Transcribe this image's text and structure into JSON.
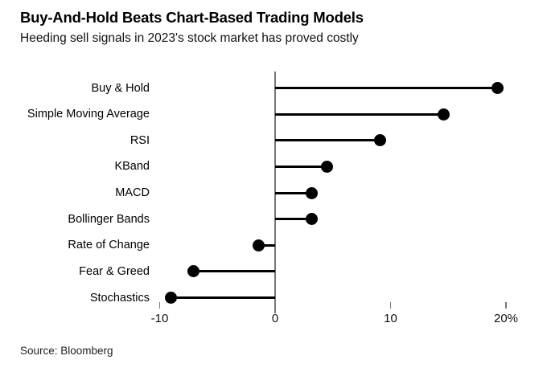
{
  "chart_data": {
    "type": "bar",
    "variant": "lollipop",
    "orientation": "horizontal",
    "title": "Buy-And-Hold Beats Chart-Based Trading Models",
    "subtitle": "Heeding sell signals in 2023's stock market has proved costly",
    "categories": [
      "Buy & Hold",
      "Simple Moving Average",
      "RSI",
      "KBand",
      "MACD",
      "Bollinger Bands",
      "Rate of Change",
      "Fear & Greed",
      "Stochastics"
    ],
    "values": [
      19.3,
      14.6,
      9.1,
      4.5,
      3.2,
      3.2,
      -1.4,
      -7.1,
      -9.0
    ],
    "unit": "percent",
    "xlim": [
      -11,
      22.5
    ],
    "xticks": {
      "values": [
        -10,
        0,
        10,
        20
      ],
      "labels": [
        "-10",
        "0",
        "10",
        "20%"
      ]
    },
    "grid": false,
    "legend": "none",
    "colors": {
      "marker": "#000000",
      "stem": "#000000",
      "axis": "#767676",
      "text": "#000000"
    },
    "source": "Source: Bloomberg"
  }
}
